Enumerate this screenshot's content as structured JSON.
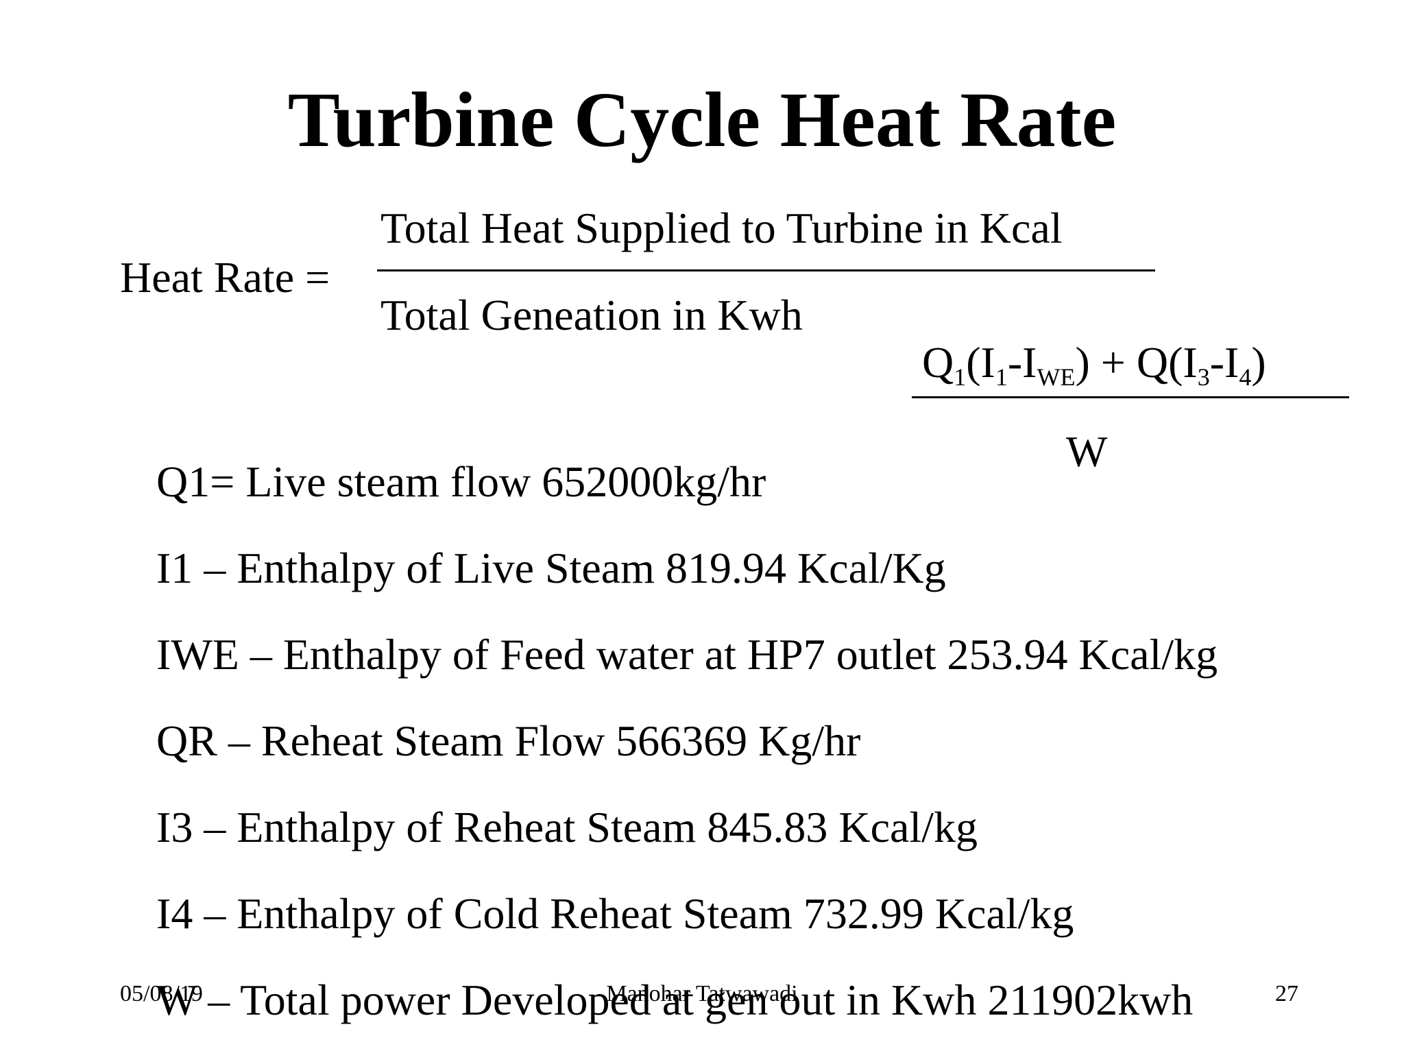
{
  "slide": {
    "title": "Turbine Cycle Heat Rate",
    "formula": {
      "label": "Heat Rate =",
      "numerator": "Total Heat Supplied to Turbine in Kcal",
      "denominator": "Total Geneation in Kwh"
    },
    "expression": {
      "q1": "Q",
      "q1_sub": "1",
      "open1": "(I",
      "i1_sub": "1",
      "minus1": "-I",
      "iwe_sub": "WE",
      "plus": ") + Q(I",
      "i3_sub": "3",
      "minus2": "-I",
      "i4_sub": "4",
      "close": ")",
      "denominator": "W"
    },
    "definitions": [
      "Q1= Live steam flow  652000kg/hr",
      "I1 – Enthalpy of Live Steam 819.94 Kcal/Kg",
      "IWE – Enthalpy of Feed water at HP7 outlet  253.94 Kcal/kg",
      "QR – Reheat Steam Flow  566369 Kg/hr",
      "I3 – Enthalpy of Reheat Steam 845.83 Kcal/kg",
      "I4 – Enthalpy of Cold Reheat Steam 732.99 Kcal/kg",
      "W – Total power Developed at gen out in Kwh 211902kwh"
    ]
  },
  "footer": {
    "date": "05/08/19",
    "author": "Manohar Tatwawadi",
    "page": "27"
  }
}
